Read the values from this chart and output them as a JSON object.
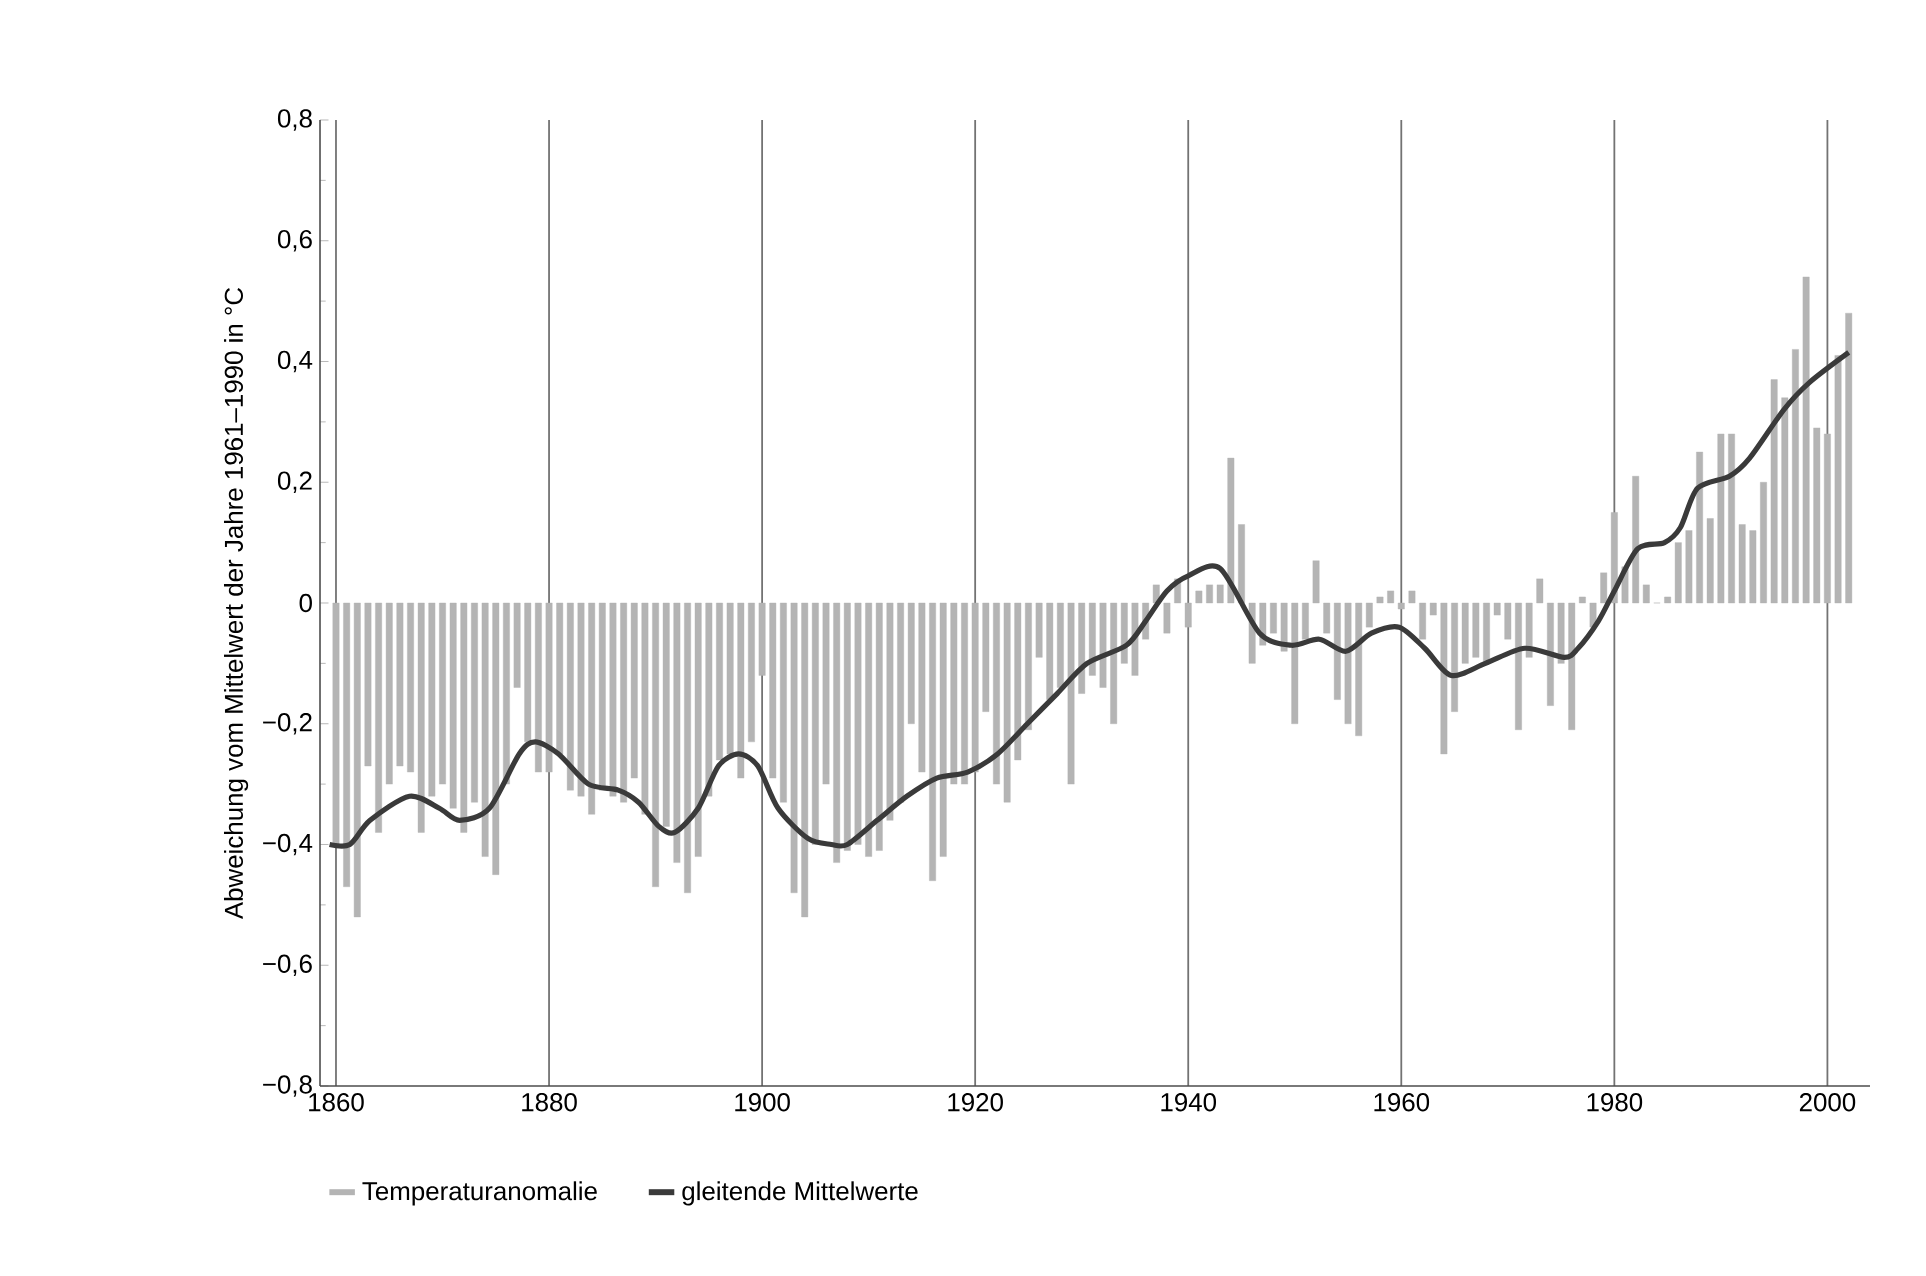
{
  "chart_data": {
    "type": "bar",
    "ylabel": "Abweichung vom Mittelwert der Jahre 1961–1990 in °C",
    "xlim": [
      1858.5,
      2004
    ],
    "ylim": [
      -0.8,
      0.8
    ],
    "xticks": [
      1860,
      1880,
      1900,
      1920,
      1940,
      1960,
      1980,
      2000
    ],
    "yticks": [
      {
        "value": -0.8,
        "label": "−0,8"
      },
      {
        "value": -0.6,
        "label": "−0,6"
      },
      {
        "value": -0.4,
        "label": "−0,4"
      },
      {
        "value": -0.2,
        "label": "−0,2"
      },
      {
        "value": 0,
        "label": "0"
      },
      {
        "value": 0.2,
        "label": "0,2"
      },
      {
        "value": 0.4,
        "label": "0,4"
      },
      {
        "value": 0.6,
        "label": "0,6"
      },
      {
        "value": 0.8,
        "label": "0,8"
      }
    ],
    "grid": "x",
    "legend": "bottom",
    "line_style": "solid",
    "series": [
      {
        "name": "Temperaturanomalie",
        "color": "#b4b4b4",
        "x": [
          1860,
          1861,
          1862,
          1863,
          1864,
          1865,
          1866,
          1867,
          1868,
          1869,
          1870,
          1871,
          1872,
          1873,
          1874,
          1875,
          1876,
          1877,
          1878,
          1879,
          1880,
          1881,
          1882,
          1883,
          1884,
          1885,
          1886,
          1887,
          1888,
          1889,
          1890,
          1891,
          1892,
          1893,
          1894,
          1895,
          1896,
          1897,
          1898,
          1899,
          1900,
          1901,
          1902,
          1903,
          1904,
          1905,
          1906,
          1907,
          1908,
          1909,
          1910,
          1911,
          1912,
          1913,
          1914,
          1915,
          1916,
          1917,
          1918,
          1919,
          1920,
          1921,
          1922,
          1923,
          1924,
          1925,
          1926,
          1927,
          1928,
          1929,
          1930,
          1931,
          1932,
          1933,
          1934,
          1935,
          1936,
          1937,
          1938,
          1939,
          1940,
          1941,
          1942,
          1943,
          1944,
          1945,
          1946,
          1947,
          1948,
          1949,
          1950,
          1951,
          1952,
          1953,
          1954,
          1955,
          1956,
          1957,
          1958,
          1959,
          1960,
          1961,
          1962,
          1963,
          1964,
          1965,
          1966,
          1967,
          1968,
          1969,
          1970,
          1971,
          1972,
          1973,
          1974,
          1975,
          1976,
          1977,
          1978,
          1979,
          1980,
          1981,
          1982,
          1983,
          1984,
          1985,
          1986,
          1987,
          1988,
          1989,
          1990,
          1991,
          1992,
          1993,
          1994,
          1995,
          1996,
          1997,
          1998,
          1999,
          2000,
          2001,
          2002
        ],
        "values": [
          -0.4,
          -0.47,
          -0.52,
          -0.27,
          -0.38,
          -0.3,
          -0.27,
          -0.28,
          -0.38,
          -0.32,
          -0.3,
          -0.34,
          -0.38,
          -0.33,
          -0.42,
          -0.45,
          -0.3,
          -0.14,
          -0.23,
          -0.28,
          -0.28,
          -0.25,
          -0.31,
          -0.32,
          -0.35,
          -0.31,
          -0.32,
          -0.33,
          -0.29,
          -0.35,
          -0.47,
          -0.37,
          -0.43,
          -0.48,
          -0.42,
          -0.32,
          -0.26,
          -0.25,
          -0.29,
          -0.23,
          -0.12,
          -0.29,
          -0.33,
          -0.48,
          -0.52,
          -0.4,
          -0.3,
          -0.43,
          -0.41,
          -0.4,
          -0.42,
          -0.41,
          -0.36,
          -0.33,
          -0.2,
          -0.28,
          -0.46,
          -0.42,
          -0.3,
          -0.3,
          -0.28,
          -0.18,
          -0.3,
          -0.33,
          -0.26,
          -0.21,
          -0.09,
          -0.16,
          -0.14,
          -0.3,
          -0.15,
          -0.12,
          -0.14,
          -0.2,
          -0.1,
          -0.12,
          -0.06,
          0.03,
          -0.05,
          0.04,
          -0.04,
          0.02,
          0.03,
          0.03,
          0.24,
          0.13,
          -0.1,
          -0.07,
          -0.05,
          -0.08,
          -0.2,
          -0.06,
          0.07,
          -0.05,
          -0.16,
          -0.2,
          -0.22,
          -0.04,
          0.01,
          0.02,
          -0.01,
          0.02,
          -0.06,
          -0.02,
          -0.25,
          -0.18,
          -0.1,
          -0.09,
          -0.1,
          -0.02,
          -0.06,
          -0.21,
          -0.09,
          0.04,
          -0.17,
          -0.1,
          -0.21,
          0.01,
          -0.04,
          0.05,
          0.15,
          0.06,
          0.21,
          0.03,
          0.0,
          0.01,
          0.1,
          0.12,
          0.25,
          0.14,
          0.28,
          0.28,
          0.13,
          0.12,
          0.2,
          0.37,
          0.34,
          0.42,
          0.54,
          0.29,
          0.28,
          0.41,
          0.48
        ]
      },
      {
        "name": "gleitende Mittelwerte",
        "type": "line",
        "color": "#3a3a3a",
        "x": [
          1859.4,
          1861.3,
          1863.2,
          1866.9,
          1869.7,
          1871.6,
          1874.4,
          1877.2,
          1878.7,
          1880.9,
          1883.7,
          1886.5,
          1888.4,
          1890.3,
          1891.8,
          1894,
          1895.9,
          1897.8,
          1899.6,
          1901.5,
          1904.3,
          1906.5,
          1908,
          1910.8,
          1913.6,
          1916.4,
          1919.3,
          1922.1,
          1924.9,
          1927.7,
          1930.5,
          1934.2,
          1936,
          1938,
          1940,
          1943,
          1946.7,
          1949.7,
          1952.3,
          1954.8,
          1957.2,
          1959.8,
          1962.2,
          1964.7,
          1967.9,
          1971.6,
          1975.3,
          1976.6,
          1978.5,
          1980,
          1982.2,
          1984.7,
          1986.2,
          1987.8,
          1990.8,
          1992.7,
          1995.9,
          1998.3,
          2002
        ],
        "values": [
          -0.4,
          -0.4,
          -0.36,
          -0.32,
          -0.34,
          -0.36,
          -0.34,
          -0.25,
          -0.23,
          -0.25,
          -0.3,
          -0.31,
          -0.33,
          -0.37,
          -0.38,
          -0.34,
          -0.27,
          -0.25,
          -0.27,
          -0.34,
          -0.39,
          -0.4,
          -0.4,
          -0.36,
          -0.32,
          -0.29,
          -0.28,
          -0.25,
          -0.2,
          -0.15,
          -0.1,
          -0.07,
          -0.03,
          0.02,
          0.045,
          0.057,
          -0.05,
          -0.07,
          -0.06,
          -0.08,
          -0.05,
          -0.04,
          -0.075,
          -0.12,
          -0.1,
          -0.075,
          -0.09,
          -0.075,
          -0.03,
          0.02,
          0.09,
          0.1,
          0.125,
          0.19,
          0.21,
          0.24,
          0.32,
          0.365,
          0.415
        ]
      }
    ]
  }
}
